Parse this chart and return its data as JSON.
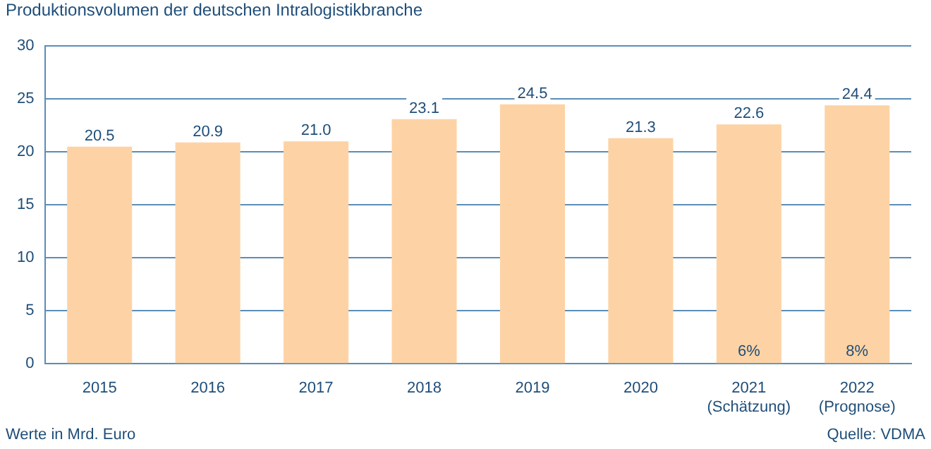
{
  "chart_data": {
    "type": "bar",
    "title": "Produktionsvolumen der deutschen Intralogistikbranche",
    "categories": [
      "2015",
      "2016",
      "2017",
      "2018",
      "2019",
      "2020",
      "2021\n(Schätzung)",
      "2022\n(Prognose)"
    ],
    "values": [
      20.5,
      20.9,
      21.0,
      23.1,
      24.5,
      21.3,
      22.6,
      24.4
    ],
    "value_labels": [
      "20.5",
      "20.9",
      "21.0",
      "23.1",
      "24.5",
      "21.3",
      "22.6",
      "24.4"
    ],
    "color": "#fdd3a5",
    "ylim": [
      0,
      30
    ],
    "yticks": [
      0,
      5,
      10,
      15,
      20,
      25,
      30
    ],
    "grid": "y",
    "annotations": [
      "6%",
      "8%",
      "Werte in Mrd. Euro",
      "Quelle: VDMA"
    ]
  }
}
